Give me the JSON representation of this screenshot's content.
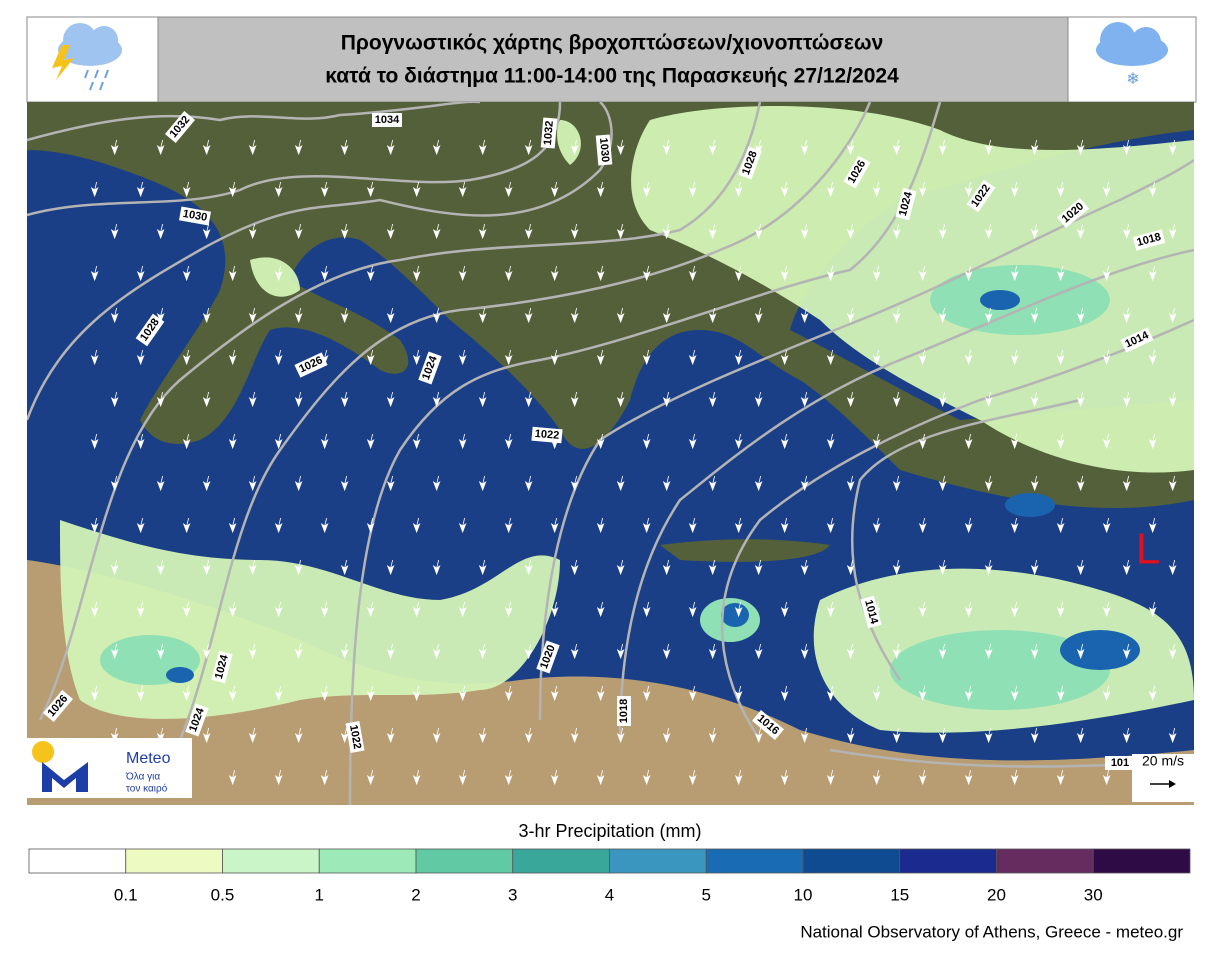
{
  "header": {
    "title_line1": "Προγνωστικός χάρτης βροχοπτώσεων/χιονοπτώσεων",
    "title_line2": "κατά το διάστημα 11:00-14:00 της Παρασκευής 27/12/2024"
  },
  "map": {
    "isobar_labels": [
      "1032",
      "1034",
      "1032",
      "1030",
      "1028",
      "1026",
      "1024",
      "1022",
      "1020",
      "1018",
      "1030",
      "1028",
      "1026",
      "1024",
      "1022",
      "1014",
      "1014",
      "1016",
      "1018",
      "1020",
      "1022",
      "1024",
      "1024",
      "1026",
      "101"
    ],
    "low_label": "L",
    "wind_scale": "20 m/s"
  },
  "logo": {
    "name": "Meteo",
    "slogan_line1": "Όλα για",
    "slogan_line2": "τον καιρό"
  },
  "colorbar": {
    "title": "3-hr Precipitation (mm)",
    "ticks": [
      "0.1",
      "0.5",
      "1",
      "2",
      "3",
      "4",
      "5",
      "10",
      "15",
      "20",
      "30"
    ],
    "colors": [
      "#ffffff",
      "#edfbc3",
      "#caf5c8",
      "#9de9b8",
      "#62c9a5",
      "#3aa79b",
      "#3a95bf",
      "#196cb4",
      "#0e4b91",
      "#1b2a8e",
      "#662b5f",
      "#2f0b45"
    ]
  },
  "footer": {
    "credit": "National Observatory of Athens, Greece - meteo.gr"
  }
}
